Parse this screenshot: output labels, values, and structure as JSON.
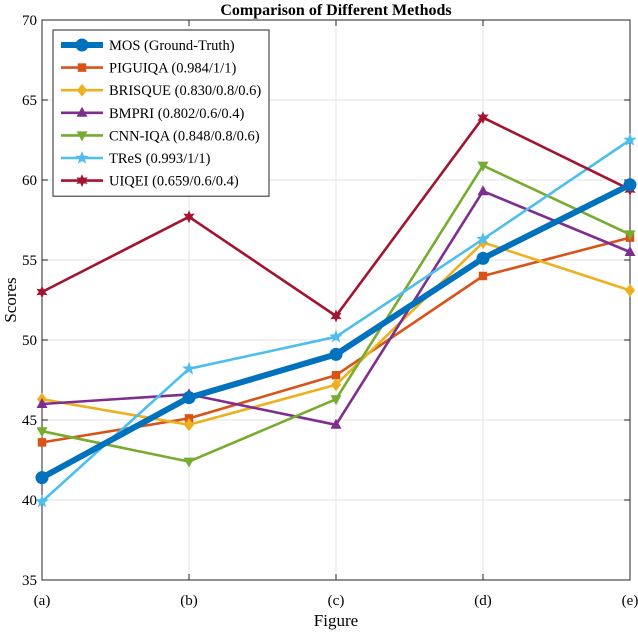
{
  "chart_data": {
    "type": "line",
    "title": "Comparison of Different Methods",
    "xlabel": "Figure",
    "ylabel": "Scores",
    "categories": [
      "(a)",
      "(b)",
      "(c)",
      "(d)",
      "(e)"
    ],
    "ylim": [
      35,
      70
    ],
    "yticks": [
      35,
      40,
      45,
      50,
      55,
      60,
      65,
      70
    ],
    "grid": true,
    "legend_position": "top-left",
    "series": [
      {
        "name": "MOS (Ground-Truth)",
        "values": [
          41.4,
          46.4,
          49.1,
          55.1,
          59.7
        ],
        "color": "#0072BD",
        "marker": "circle",
        "width": "thick"
      },
      {
        "name": "PIGUIQA (0.984/1/1)",
        "values": [
          43.6,
          45.1,
          47.8,
          54.0,
          56.4
        ],
        "color": "#D95319",
        "marker": "square",
        "width": "thin"
      },
      {
        "name": "BRISQUE (0.830/0.8/0.6)",
        "values": [
          46.3,
          44.7,
          47.2,
          56.1,
          53.1
        ],
        "color": "#EDB120",
        "marker": "diamond",
        "width": "thin"
      },
      {
        "name": "BMPRI (0.802/0.6/0.4)",
        "values": [
          46.0,
          46.6,
          44.7,
          59.3,
          55.5
        ],
        "color": "#7E2F8E",
        "marker": "triangle-up",
        "width": "thin"
      },
      {
        "name": "CNN-IQA (0.848/0.8/0.6)",
        "values": [
          44.3,
          42.4,
          46.3,
          60.9,
          56.6
        ],
        "color": "#77AC30",
        "marker": "triangle-down",
        "width": "thin"
      },
      {
        "name": "TReS (0.993/1/1)",
        "values": [
          39.9,
          48.2,
          50.2,
          56.3,
          62.5
        ],
        "color": "#4DBEEE",
        "marker": "pentagram",
        "width": "thin"
      },
      {
        "name": "UIQEI (0.659/0.6/0.4)",
        "values": [
          53.0,
          57.7,
          51.5,
          63.9,
          59.4
        ],
        "color": "#A2142F",
        "marker": "hexagram",
        "width": "thin"
      }
    ]
  }
}
